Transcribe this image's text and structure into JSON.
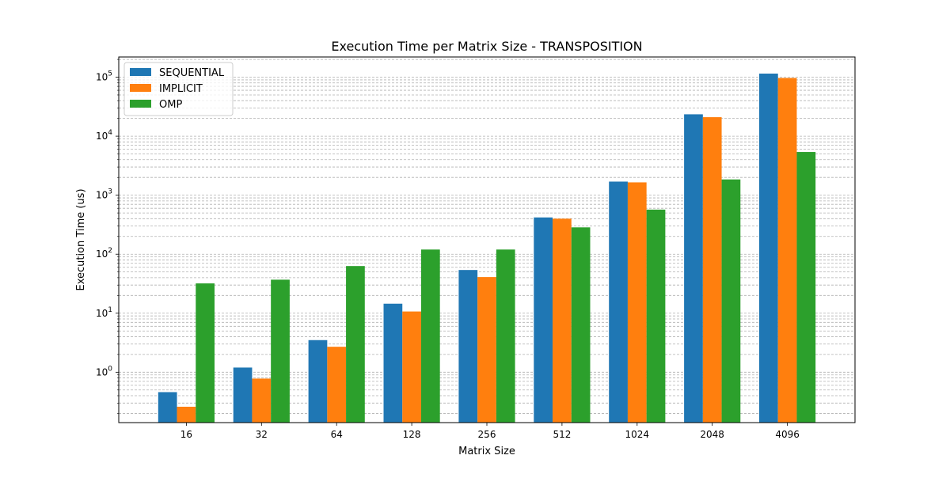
{
  "chart_data": {
    "type": "bar",
    "title": "Execution Time per Matrix Size - TRANSPOSITION",
    "xlabel": "Matrix Size",
    "ylabel": "Execution Time (us)",
    "yscale": "log",
    "ylim": [
      0.14,
      220000
    ],
    "grid": "y-major-and-minor-dashed",
    "legend_position": "top-left",
    "categories": [
      "16",
      "32",
      "64",
      "128",
      "256",
      "512",
      "1024",
      "2048",
      "4096"
    ],
    "y_ticks": [
      {
        "value": 1,
        "base": "10",
        "exp": "0"
      },
      {
        "value": 10,
        "base": "10",
        "exp": "1"
      },
      {
        "value": 100,
        "base": "10",
        "exp": "2"
      },
      {
        "value": 1000,
        "base": "10",
        "exp": "3"
      },
      {
        "value": 10000,
        "base": "10",
        "exp": "4"
      },
      {
        "value": 100000,
        "base": "10",
        "exp": "5"
      }
    ],
    "series": [
      {
        "name": "SEQUENTIAL",
        "color": "#1f77b4",
        "values": [
          0.46,
          1.2,
          3.5,
          14.5,
          54,
          420,
          1700,
          23500,
          115000
        ]
      },
      {
        "name": "IMPLICIT",
        "color": "#ff7f0e",
        "values": [
          0.26,
          0.78,
          2.7,
          10.7,
          41,
          400,
          1650,
          21000,
          97000
        ]
      },
      {
        "name": "OMP",
        "color": "#2ca02c",
        "values": [
          32,
          37,
          63,
          120,
          120,
          285,
          570,
          1850,
          5400
        ]
      }
    ]
  }
}
